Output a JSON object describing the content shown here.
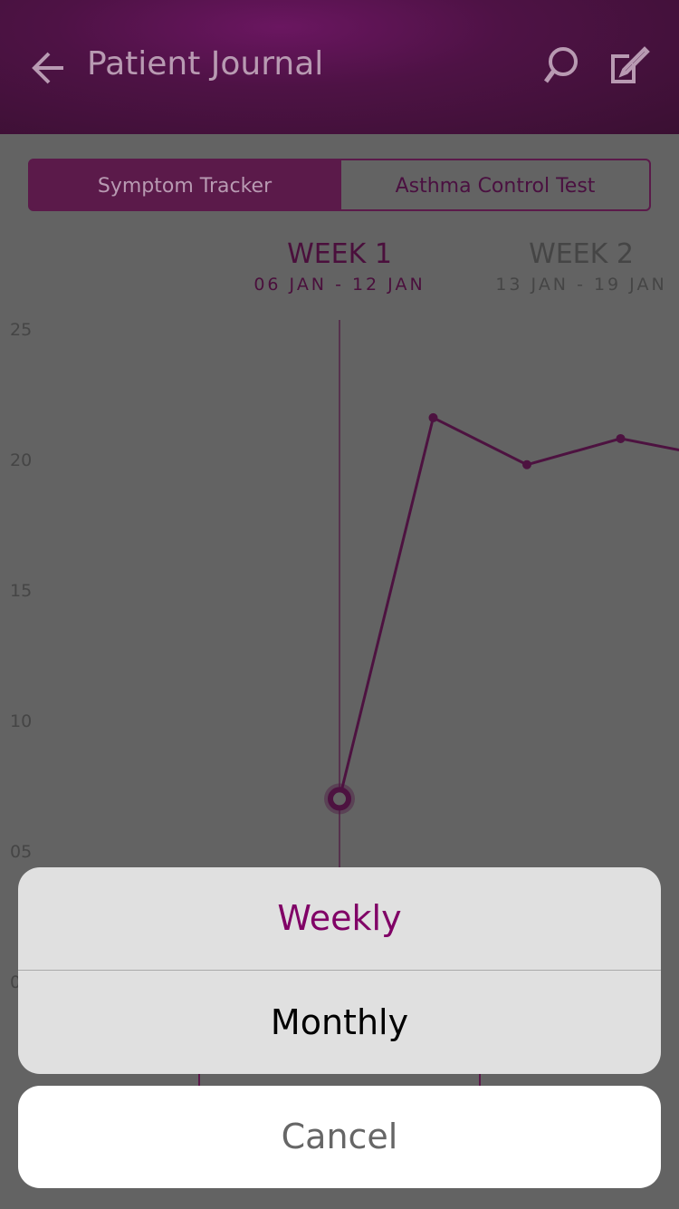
{
  "header": {
    "title": "Patient Journal"
  },
  "tabs": [
    {
      "label": "Symptom Tracker",
      "active": true
    },
    {
      "label": "Asthma Control Test",
      "active": false
    }
  ],
  "chart_data": {
    "type": "line",
    "weeks": [
      {
        "title": "WEEK 1",
        "range": "06 JAN - 12 JAN"
      },
      {
        "title": "WEEK 2",
        "range": "13 JAN - 19 JAN"
      }
    ],
    "series": [
      {
        "color": "#4d1240",
        "values": [
          7,
          21.6,
          19.8,
          20.8,
          20.1
        ]
      }
    ],
    "ylim": [
      0,
      25
    ],
    "yticks": [
      0,
      {
        "value": 5,
        "label": "05"
      },
      10,
      15,
      20,
      25
    ]
  },
  "action_sheet": {
    "options": [
      "Weekly",
      "Monthly"
    ],
    "cancel": "Cancel"
  }
}
